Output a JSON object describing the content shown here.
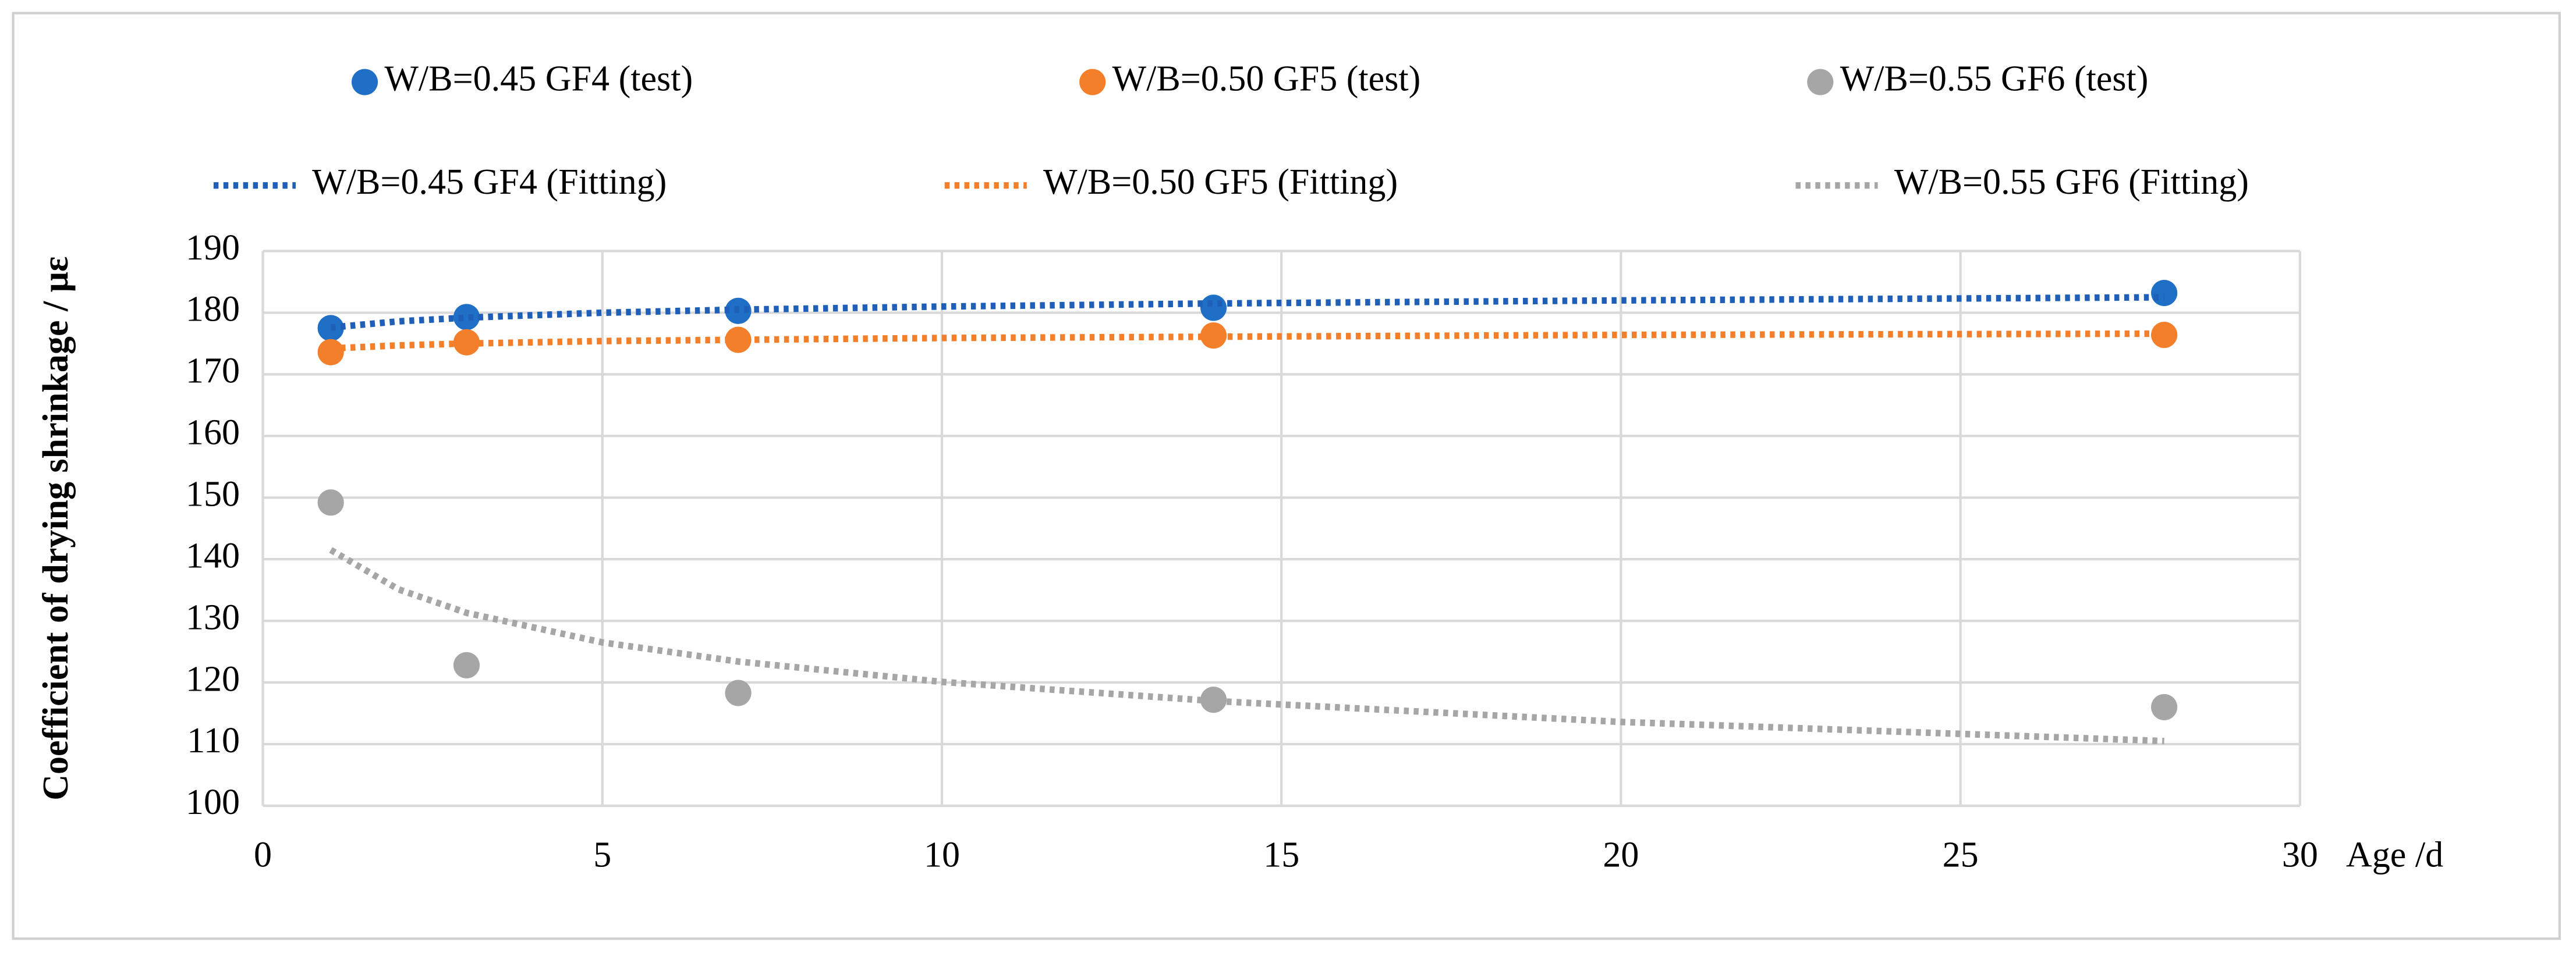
{
  "chart_data": {
    "type": "scatter",
    "ylabel": "Coefficient of drying shrinkage / με",
    "xlabel": "Age /d",
    "xlim": [
      0,
      30
    ],
    "xticks": [
      0,
      5,
      10,
      15,
      20,
      25,
      30
    ],
    "ylim": [
      100,
      190
    ],
    "yticks": [
      100,
      110,
      120,
      130,
      140,
      150,
      160,
      170,
      180,
      190
    ],
    "grid": true,
    "series": [
      {
        "name": "W/B=0.45 GF4 (test)",
        "color": "#1f6fc6",
        "style": "marker",
        "x": [
          1,
          3,
          7,
          14,
          28
        ],
        "values": [
          177.5,
          179.3,
          180.3,
          180.8,
          183.2
        ]
      },
      {
        "name": "W/B=0.50 GF5 (test)",
        "color": "#f47f2a",
        "style": "marker",
        "x": [
          1,
          3,
          7,
          14,
          28
        ],
        "values": [
          173.6,
          175.2,
          175.6,
          176.3,
          176.4
        ]
      },
      {
        "name": "W/B=0.55 GF6 (test)",
        "color": "#a6a6a6",
        "style": "marker",
        "x": [
          1,
          3,
          7,
          14,
          28
        ],
        "values": [
          149.2,
          122.8,
          118.3,
          117.2,
          116.0
        ]
      },
      {
        "name": "W/B=0.45 GF4 (Fitting)",
        "color": "#1f5fb8",
        "style": "dotted",
        "x": [
          1,
          2,
          3,
          5,
          7,
          10,
          14,
          20,
          28
        ],
        "values": [
          177.6,
          178.6,
          179.2,
          180.0,
          180.5,
          181.0,
          181.5,
          182.0,
          182.5
        ]
      },
      {
        "name": "W/B=0.50 GF5 (Fitting)",
        "color": "#f47f2a",
        "style": "dotted",
        "x": [
          1,
          2,
          3,
          5,
          7,
          10,
          14,
          20,
          28
        ],
        "values": [
          174.2,
          174.7,
          175.0,
          175.4,
          175.6,
          175.9,
          176.1,
          176.4,
          176.6
        ]
      },
      {
        "name": "W/B=0.55 GF6 (Fitting)",
        "color": "#a6a6a6",
        "style": "dotted",
        "x": [
          1,
          2,
          3,
          5,
          7,
          10,
          14,
          20,
          28
        ],
        "values": [
          141.5,
          135.1,
          131.3,
          126.5,
          123.4,
          120.1,
          117.0,
          113.6,
          110.5
        ]
      }
    ]
  }
}
